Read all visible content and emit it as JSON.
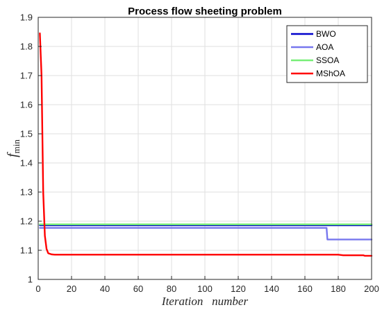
{
  "chart_data": {
    "type": "line",
    "title": "Process flow sheeting problem",
    "xlabel": "Iteration   number",
    "ylabel": "f",
    "ylabel_subscript": "min",
    "xlim": [
      0,
      200
    ],
    "ylim": [
      1,
      1.9
    ],
    "xticks": [
      0,
      20,
      40,
      60,
      80,
      100,
      120,
      140,
      160,
      180,
      200
    ],
    "yticks": [
      1,
      1.1,
      1.2,
      1.3,
      1.4,
      1.5,
      1.6,
      1.7,
      1.8,
      1.9
    ],
    "ytick_labels": [
      "1",
      "1.1",
      "1.2",
      "1.3",
      "1.4",
      "1.5",
      "1.6",
      "1.7",
      "1.8",
      "1.9"
    ],
    "grid": true,
    "legend_position": "top-right",
    "series": [
      {
        "name": "BWO",
        "color": "#0000cc",
        "x": [
          1,
          200
        ],
        "y": [
          1.186,
          1.186
        ]
      },
      {
        "name": "AOA",
        "color": "#7777ee",
        "x": [
          1,
          173,
          173.5,
          200
        ],
        "y": [
          1.177,
          1.177,
          1.137,
          1.137
        ]
      },
      {
        "name": "SSOA",
        "color": "#77ee77",
        "x": [
          1,
          200
        ],
        "y": [
          1.189,
          1.189
        ]
      },
      {
        "name": "MShOA",
        "color": "#ff0000",
        "x": [
          1,
          2,
          3,
          4,
          5,
          6,
          8,
          10,
          20,
          60,
          100,
          150,
          180,
          183,
          190,
          195,
          196,
          200
        ],
        "y": [
          1.845,
          1.7,
          1.3,
          1.15,
          1.105,
          1.09,
          1.086,
          1.085,
          1.085,
          1.085,
          1.085,
          1.085,
          1.085,
          1.083,
          1.083,
          1.083,
          1.081,
          1.081
        ]
      }
    ]
  }
}
